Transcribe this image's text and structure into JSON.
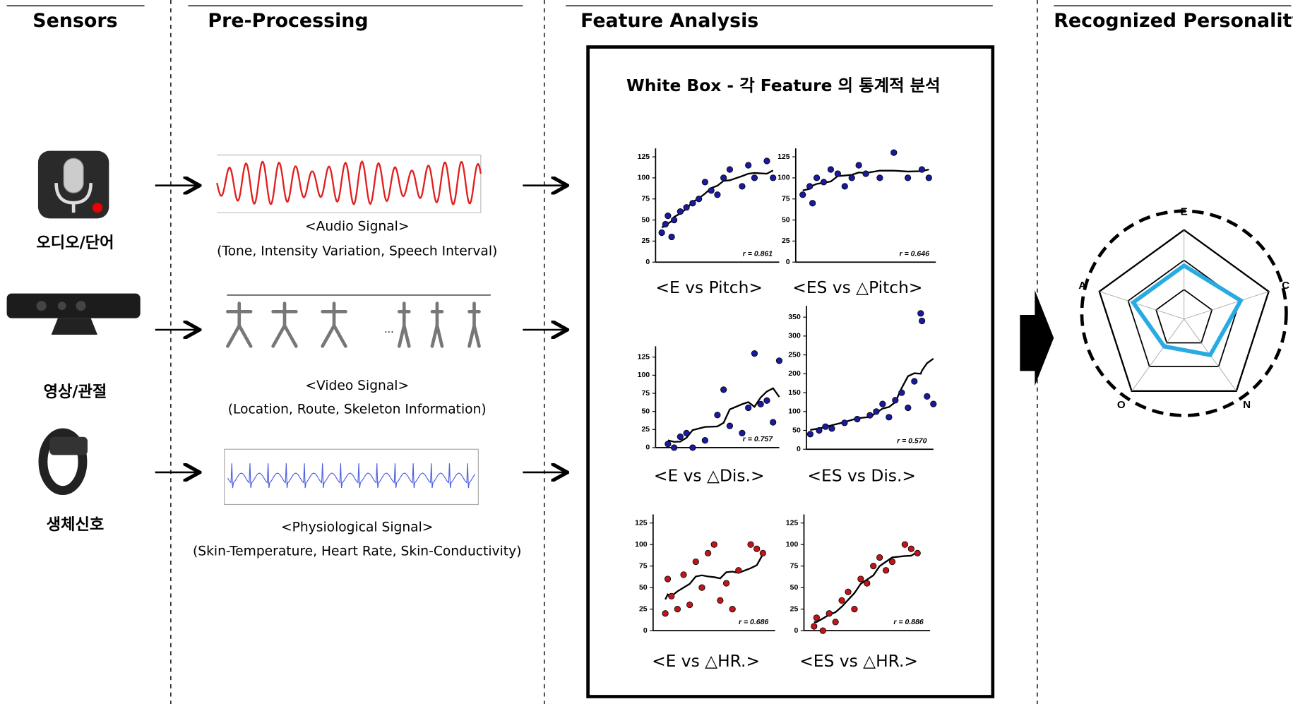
{
  "columns": [
    "Sensors",
    "Pre-Processing",
    "Feature Analysis",
    "Recognized Personality"
  ],
  "sensors": [
    "오디오/단어",
    "영상/관절",
    "생체신호"
  ],
  "signals": [
    {
      "title": "<Audio Signal>",
      "detail": "(Tone, Intensity Variation, Speech Interval)"
    },
    {
      "title": "<Video Signal>",
      "detail": "(Location, Route, Skeleton Information)"
    },
    {
      "title": "<Physiological Signal>",
      "detail": "(Skin-Temperature, Heart Rate, Skin-Conductivity)"
    }
  ],
  "white_box": {
    "title": "White Box - 각 Feature 의 통계적 분석",
    "plots": [
      {
        "type": "scatter",
        "caption": "<E vs Pitch>",
        "color": "#1a1a9c",
        "r_label": "r = 0.861",
        "xlim": [
          0,
          10
        ],
        "ylim": [
          0,
          135
        ],
        "yticks": [
          0,
          25,
          50,
          75,
          100,
          125
        ],
        "x": [
          0.5,
          0.8,
          1,
          1.3,
          1.5,
          2,
          2.5,
          3,
          3.5,
          4,
          4.5,
          5,
          5.5,
          6,
          7,
          7.5,
          8,
          9,
          9.5
        ],
        "y": [
          35,
          45,
          55,
          30,
          50,
          60,
          65,
          70,
          75,
          95,
          85,
          80,
          100,
          110,
          90,
          115,
          100,
          120,
          100
        ]
      },
      {
        "type": "scatter",
        "caption": "<ES vs △Pitch>",
        "color": "#1a1a9c",
        "r_label": "r = 0.646",
        "xlim": [
          0,
          10
        ],
        "ylim": [
          0,
          135
        ],
        "yticks": [
          0,
          25,
          50,
          75,
          100,
          125
        ],
        "x": [
          0.5,
          1,
          1.2,
          1.5,
          2,
          2.5,
          3,
          3.5,
          4,
          4.5,
          5,
          6,
          7,
          8,
          9,
          9.5
        ],
        "y": [
          80,
          90,
          70,
          100,
          95,
          110,
          105,
          90,
          100,
          115,
          105,
          100,
          130,
          100,
          110,
          100
        ]
      },
      {
        "type": "scatter",
        "caption": "<E vs △Dis.>",
        "color": "#1a1a9c",
        "r_label": "r = 0.757",
        "xlim": [
          0,
          10
        ],
        "ylim": [
          0,
          140
        ],
        "yticks": [
          0,
          25,
          50,
          75,
          100,
          125
        ],
        "x": [
          1,
          1.5,
          2,
          2.5,
          3,
          4,
          5,
          5.5,
          6,
          7,
          7.5,
          8,
          8.5,
          9,
          9.5,
          10
        ],
        "y": [
          5,
          0,
          15,
          20,
          0,
          10,
          45,
          80,
          30,
          20,
          55,
          130,
          60,
          65,
          35,
          120
        ]
      },
      {
        "type": "scatter",
        "caption": "<ES vs Dis.>",
        "color": "#1a1a9c",
        "r_label": "r = 0.570",
        "xlim": [
          0,
          10
        ],
        "ylim": [
          0,
          380
        ],
        "yticks": [
          0,
          50,
          100,
          150,
          200,
          250,
          300,
          350
        ],
        "x": [
          0.3,
          1,
          1.5,
          2,
          3,
          4,
          5,
          5.5,
          6,
          6.5,
          7,
          7.5,
          8,
          8.5,
          9,
          9.1,
          9.5,
          10
        ],
        "y": [
          40,
          50,
          60,
          55,
          70,
          80,
          90,
          100,
          120,
          85,
          130,
          150,
          110,
          180,
          360,
          340,
          140,
          120
        ]
      },
      {
        "type": "scatter",
        "caption": "<E vs △HR.>",
        "color": "#c0151b",
        "r_label": "r = 0.686",
        "xlim": [
          0,
          10
        ],
        "ylim": [
          0,
          135
        ],
        "yticks": [
          0,
          25,
          50,
          75,
          100,
          125
        ],
        "x": [
          1,
          1.2,
          1.5,
          2,
          2.5,
          3,
          3.5,
          4,
          4.5,
          5,
          5.5,
          6,
          6.5,
          7,
          8,
          8.5,
          9
        ],
        "y": [
          20,
          60,
          40,
          25,
          65,
          30,
          80,
          50,
          90,
          100,
          35,
          55,
          25,
          70,
          100,
          95,
          90
        ]
      },
      {
        "type": "scatter",
        "caption": "<ES vs △HR.>",
        "color": "#c0151b",
        "r_label": "r = 0.886",
        "xlim": [
          0,
          10
        ],
        "ylim": [
          0,
          135
        ],
        "yticks": [
          0,
          25,
          50,
          75,
          100,
          125
        ],
        "x": [
          0.8,
          1,
          1.5,
          2,
          2.5,
          3,
          3.5,
          4,
          4.5,
          5,
          5.5,
          6,
          6.5,
          7,
          8,
          8.5,
          9
        ],
        "y": [
          5,
          15,
          0,
          20,
          10,
          35,
          45,
          25,
          60,
          55,
          75,
          85,
          70,
          80,
          100,
          95,
          90
        ]
      }
    ]
  },
  "radar": {
    "type": "radar",
    "axes": [
      "E",
      "C",
      "N",
      "O",
      "A"
    ],
    "values": [
      0.6,
      0.67,
      0.5,
      0.38,
      0.6
    ],
    "color": "#29abe2",
    "ylim": [
      0,
      1
    ]
  }
}
